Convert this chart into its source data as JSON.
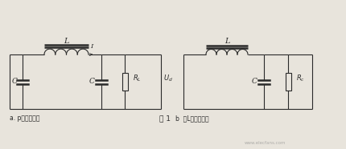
{
  "bg_color": "#e8e4dc",
  "line_color": "#2a2a2a",
  "lw": 0.8,
  "fig_label": "图 1",
  "circuit_a_label": "a. p形滤波电路",
  "circuit_b_label": "b  倒L形滤波电路",
  "label_L": "L",
  "label_C": "C",
  "label_RL": "R_L",
  "label_Rc": "R_c",
  "label_I": "I",
  "label_Ud": "U_d",
  "watermark": "www.elecfans.com"
}
